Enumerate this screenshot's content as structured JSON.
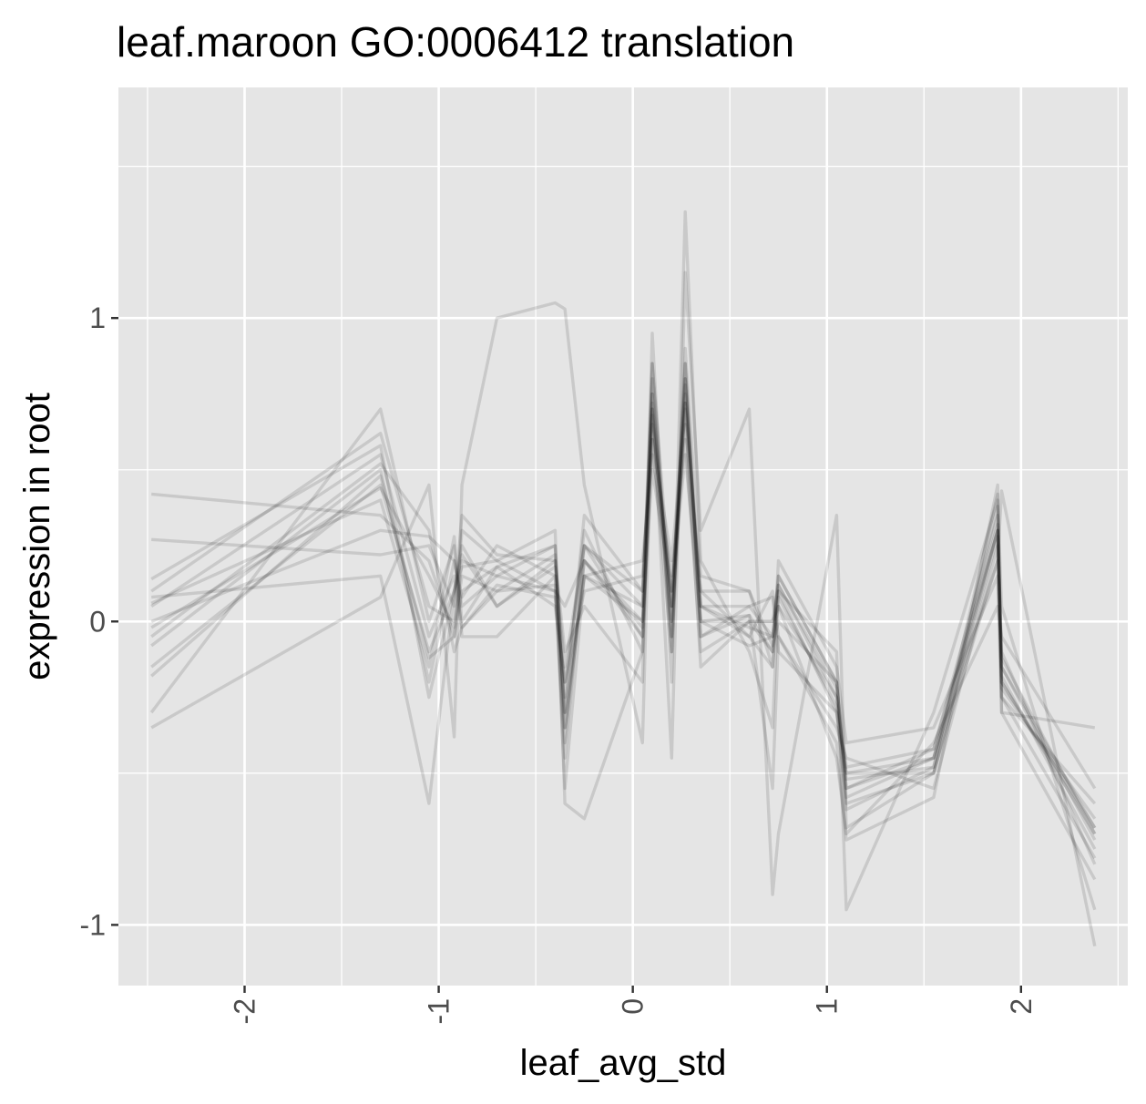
{
  "chart_data": {
    "type": "line",
    "title": "leaf.maroon GO:0006412 translation",
    "xlabel": "leaf_avg_std",
    "ylabel": "expression in root",
    "xlim": [
      -2.65,
      2.55
    ],
    "ylim": [
      -1.2,
      1.76
    ],
    "x_ticks": [
      -2,
      -1,
      0,
      1,
      2
    ],
    "x_tick_labels": [
      "-2",
      "-1",
      "0",
      "1",
      "2"
    ],
    "y_ticks": [
      -1,
      0,
      1
    ],
    "y_tick_labels": [
      "-1",
      "0",
      "1"
    ],
    "grid": true,
    "line_color": "#000000",
    "panel_color": "#e5e5e5",
    "x": [
      -2.48,
      -1.3,
      -1.05,
      -0.92,
      -0.88,
      -0.7,
      -0.4,
      -0.35,
      -0.25,
      0.05,
      0.1,
      0.2,
      0.27,
      0.35,
      0.6,
      0.72,
      0.75,
      1.05,
      1.1,
      1.55,
      1.88,
      1.9,
      2.38
    ],
    "series": [
      {
        "values": [
          -0.18,
          0.48,
          -0.12,
          -0.05,
          0.2,
          0.15,
          0.25,
          -0.35,
          0.2,
          -0.05,
          0.75,
          0.0,
          0.72,
          0.05,
          -0.02,
          -0.05,
          0.12,
          -0.25,
          -0.52,
          -0.48,
          0.42,
          -0.2,
          -0.68
        ]
      },
      {
        "values": [
          -0.15,
          0.45,
          -0.1,
          0.1,
          0.25,
          0.05,
          0.2,
          -0.3,
          0.15,
          0.0,
          0.7,
          0.05,
          0.78,
          0.0,
          0.02,
          -0.1,
          0.15,
          -0.2,
          -0.55,
          -0.42,
          0.35,
          -0.15,
          -0.72
        ]
      },
      {
        "values": [
          0.1,
          0.62,
          0.05,
          0.0,
          0.3,
          0.2,
          0.1,
          -0.45,
          0.25,
          0.05,
          0.85,
          -0.05,
          0.85,
          -0.05,
          0.05,
          0.08,
          -0.1,
          -0.3,
          -0.6,
          -0.5,
          0.3,
          -0.1,
          -0.8
        ]
      },
      {
        "values": [
          0.05,
          0.55,
          -0.05,
          0.15,
          -0.02,
          0.1,
          0.22,
          -0.25,
          0.3,
          -0.1,
          0.65,
          0.1,
          0.65,
          0.1,
          -0.05,
          0.1,
          -0.05,
          -0.35,
          -0.45,
          -0.55,
          0.25,
          -0.25,
          -0.6
        ]
      },
      {
        "values": [
          0.42,
          0.35,
          0.2,
          -0.05,
          0.1,
          0.18,
          0.05,
          -0.2,
          0.1,
          0.15,
          0.6,
          -0.1,
          0.9,
          0.15,
          0.1,
          -0.15,
          0.2,
          -0.15,
          -0.4,
          -0.35,
          0.15,
          -0.3,
          -0.85
        ]
      },
      {
        "values": [
          -0.3,
          0.7,
          0.0,
          0.25,
          -0.05,
          -0.05,
          0.15,
          -0.55,
          0.15,
          0.2,
          0.55,
          0.15,
          0.6,
          -0.1,
          0.0,
          0.0,
          0.05,
          -0.45,
          -0.7,
          -0.4,
          0.05,
          -0.05,
          -0.55
        ]
      },
      {
        "values": [
          0.27,
          0.22,
          0.25,
          0.05,
          0.35,
          0.22,
          0.2,
          -0.1,
          0.05,
          -0.2,
          0.95,
          -0.2,
          1.35,
          0.2,
          -0.1,
          -0.35,
          0.1,
          -0.1,
          -0.95,
          -0.3,
          0.4,
          0.05,
          -0.95
        ]
      },
      {
        "values": [
          -0.35,
          0.08,
          0.45,
          -0.38,
          0.45,
          1.0,
          1.05,
          1.03,
          0.45,
          -0.4,
          0.75,
          -0.45,
          1.15,
          0.3,
          0.7,
          -0.9,
          -0.7,
          0.35,
          -0.68,
          -0.5,
          0.2,
          0.43,
          -1.07
        ]
      },
      {
        "values": [
          0.0,
          0.3,
          0.28,
          0.2,
          0.05,
          0.15,
          0.1,
          0.05,
          0.2,
          0.0,
          0.5,
          0.1,
          0.55,
          0.0,
          -0.08,
          -0.05,
          0.05,
          -0.25,
          -0.5,
          -0.45,
          0.2,
          -0.2,
          -0.7
        ]
      },
      {
        "values": [
          -0.08,
          0.5,
          -0.2,
          0.2,
          0.08,
          0.25,
          0.15,
          -0.3,
          0.35,
          0.1,
          0.7,
          -0.05,
          0.8,
          0.05,
          0.05,
          -0.05,
          0.15,
          -0.2,
          -0.55,
          -0.45,
          0.3,
          -0.18,
          -0.75
        ]
      },
      {
        "values": [
          0.14,
          0.58,
          -0.25,
          0.1,
          0.22,
          0.05,
          0.18,
          -0.15,
          0.25,
          -0.05,
          0.6,
          0.2,
          0.7,
          -0.15,
          0.0,
          -0.1,
          0.1,
          -0.3,
          -0.5,
          -0.5,
          0.28,
          -0.22,
          -0.65
        ]
      },
      {
        "values": [
          -0.02,
          0.44,
          0.15,
          -0.02,
          0.15,
          0.1,
          0.12,
          -0.4,
          0.2,
          -0.02,
          0.68,
          0.0,
          0.72,
          0.1,
          0.1,
          -0.08,
          0.0,
          -0.2,
          -0.58,
          -0.45,
          0.32,
          -0.12,
          -0.7
        ]
      },
      {
        "values": [
          0.06,
          0.4,
          -0.15,
          0.28,
          0.0,
          0.18,
          0.25,
          -0.35,
          0.15,
          0.05,
          0.8,
          -0.1,
          0.75,
          0.05,
          -0.05,
          -0.15,
          0.08,
          -0.28,
          -0.62,
          -0.48,
          0.38,
          -0.25,
          -0.78
        ]
      },
      {
        "values": [
          0.08,
          0.15,
          -0.6,
          0.1,
          0.18,
          0.2,
          0.3,
          -0.6,
          -0.65,
          -0.1,
          0.85,
          0.05,
          0.85,
          -0.05,
          0.02,
          -0.55,
          -0.05,
          -0.4,
          -0.72,
          -0.58,
          0.45,
          -0.3,
          -0.35
        ]
      },
      {
        "values": [
          -0.05,
          0.52,
          0.3,
          -0.1,
          -0.02,
          0.12,
          0.08,
          -0.2,
          0.25,
          0.1,
          0.72,
          0.05,
          0.8,
          0.0,
          0.0,
          0.0,
          0.12,
          -0.22,
          -0.48,
          -0.42,
          0.3,
          -0.15,
          -0.68
        ]
      }
    ]
  }
}
